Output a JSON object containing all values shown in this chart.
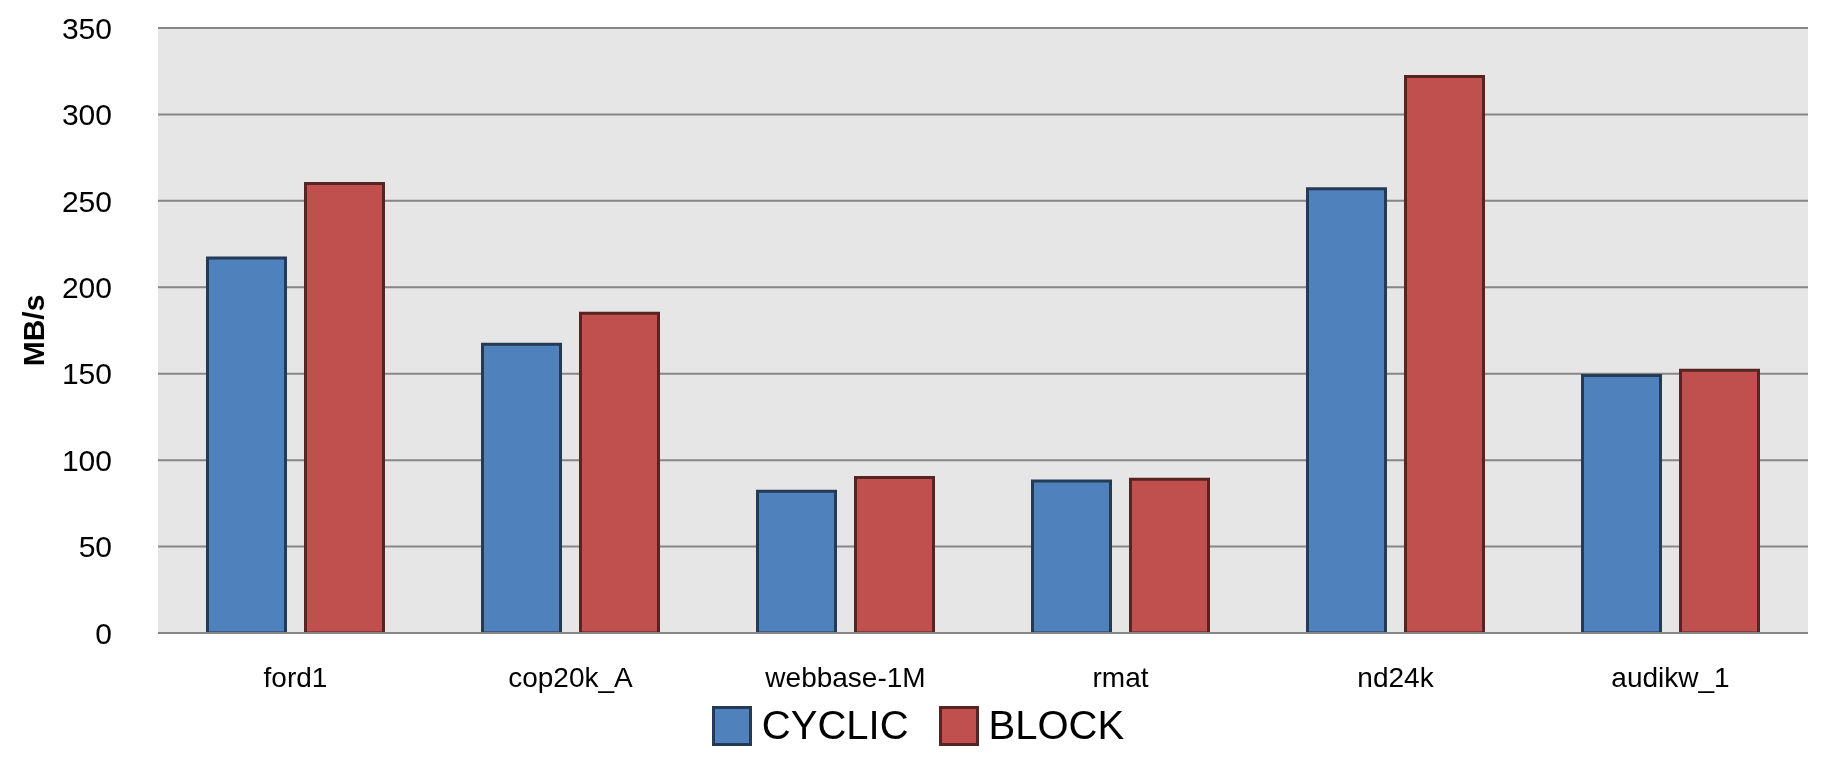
{
  "chart_data": {
    "type": "bar",
    "ylabel": "MB/s",
    "categories": [
      "ford1",
      "cop20k_A",
      "webbase-1M",
      "rmat",
      "nd24k",
      "audikw_1"
    ],
    "series": [
      {
        "name": "CYCLIC",
        "color": "#4f81bd",
        "values": [
          217,
          167,
          82,
          88,
          257,
          149
        ]
      },
      {
        "name": "BLOCK",
        "color": "#c0504d",
        "values": [
          260,
          185,
          90,
          89,
          322,
          152
        ]
      }
    ],
    "ylim": [
      0,
      350
    ],
    "yticks": [
      0,
      50,
      100,
      150,
      200,
      250,
      300,
      350
    ],
    "grid": "y",
    "legend": "bottom"
  }
}
